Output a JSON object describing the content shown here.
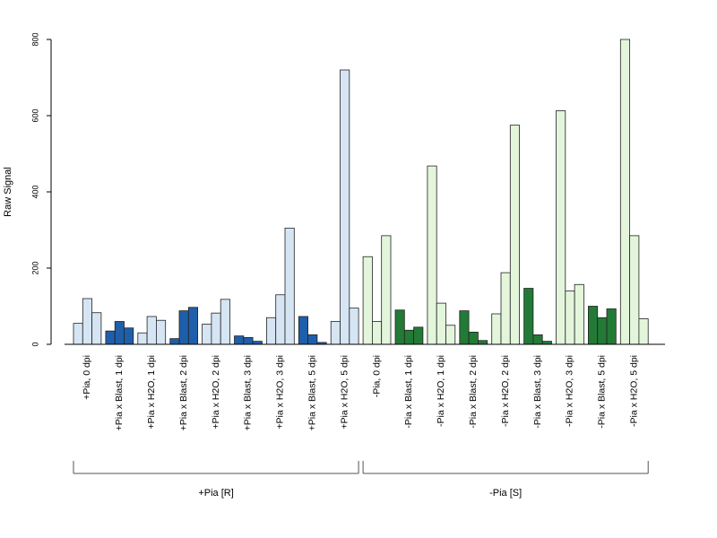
{
  "chart_data": {
    "type": "bar",
    "ylabel": "Raw Signal",
    "xlabel": "",
    "ylim": [
      0,
      800
    ],
    "yticks": [
      0,
      200,
      400,
      600,
      800
    ],
    "bars_per_category": 3,
    "grid": false,
    "categories": [
      "+Pia, 0 dpi",
      "+Pia x Blast, 1 dpi",
      "+Pia x H2O, 1 dpi",
      "+Pia x Blast, 2 dpi",
      "+Pia x H2O, 2 dpi",
      "+Pia x Blast, 3 dpi",
      "+Pia x H2O, 3 dpi",
      "+Pia x Blast, 5 dpi",
      "+Pia x H2O, 5 dpi",
      "-Pia, 0 dpi",
      "-Pia x Blast, 1 dpi",
      "-Pia x H2O, 1 dpi",
      "-Pia x Blast, 2 dpi",
      "-Pia x H2O, 2 dpi",
      "-Pia x Blast, 3 dpi",
      "-Pia x H2O, 3 dpi",
      "-Pia x Blast, 5 dpi",
      "-Pia x H2O, 5 dpi"
    ],
    "values": [
      [
        55,
        120,
        83
      ],
      [
        35,
        60,
        43
      ],
      [
        30,
        73,
        63
      ],
      [
        15,
        88,
        97
      ],
      [
        53,
        82,
        118
      ],
      [
        22,
        18,
        8
      ],
      [
        70,
        130,
        305
      ],
      [
        73,
        25,
        5
      ],
      [
        60,
        720,
        95
      ],
      [
        230,
        60,
        285
      ],
      [
        90,
        37,
        45
      ],
      [
        468,
        108,
        50
      ],
      [
        88,
        32,
        10
      ],
      [
        80,
        188,
        575
      ],
      [
        147,
        25,
        8
      ],
      [
        613,
        140,
        157
      ],
      [
        100,
        70,
        93
      ],
      [
        800,
        285,
        67
      ]
    ],
    "bar_colors": [
      "#d6e5f4",
      "#1f5faa",
      "#d6e5f4",
      "#1f5faa",
      "#d6e5f4",
      "#1f5faa",
      "#d6e5f4",
      "#1f5faa",
      "#d6e5f4",
      "#e3f6dc",
      "#237a36",
      "#e3f6dc",
      "#237a36",
      "#e3f6dc",
      "#237a36",
      "#e3f6dc",
      "#237a36",
      "#e3f6dc"
    ],
    "groups": [
      {
        "label": "+Pia [R]",
        "start": 0,
        "end": 8
      },
      {
        "label": "-Pia [S]",
        "start": 9,
        "end": 17
      }
    ]
  }
}
